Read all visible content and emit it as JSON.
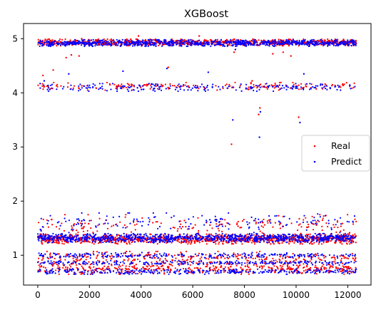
{
  "chart_data": {
    "type": "scatter",
    "title": "XGBoost",
    "xlabel": "",
    "ylabel": "",
    "xlim": [
      -550,
      12900
    ],
    "ylim": [
      0.45,
      5.28
    ],
    "xticks": [
      0,
      2000,
      4000,
      6000,
      8000,
      10000,
      12000
    ],
    "yticks": [
      1,
      2,
      3,
      4,
      5
    ],
    "grid": false,
    "legend_position": "center-right",
    "n_samples": 12330,
    "series": [
      {
        "name": "Real",
        "color": "#ff0000",
        "bands": [
          {
            "center": 4.93,
            "spread": 0.06,
            "fraction": 0.3
          },
          {
            "center": 4.12,
            "spread": 0.07,
            "fraction": 0.06
          },
          {
            "center": 1.3,
            "spread": 0.09,
            "fraction": 0.34
          },
          {
            "center": 1.55,
            "spread": 0.2,
            "fraction": 0.06
          },
          {
            "center": 0.95,
            "spread": 0.12,
            "fraction": 0.1
          },
          {
            "center": 0.75,
            "spread": 0.1,
            "fraction": 0.14
          }
        ],
        "outliers": [
          {
            "x": 200,
            "y": 4.32
          },
          {
            "x": 600,
            "y": 4.42
          },
          {
            "x": 1100,
            "y": 4.65
          },
          {
            "x": 1300,
            "y": 4.7
          },
          {
            "x": 1600,
            "y": 4.68
          },
          {
            "x": 1700,
            "y": 5.0
          },
          {
            "x": 3900,
            "y": 5.05
          },
          {
            "x": 5050,
            "y": 4.47
          },
          {
            "x": 6250,
            "y": 5.05
          },
          {
            "x": 7500,
            "y": 3.05
          },
          {
            "x": 7600,
            "y": 4.75
          },
          {
            "x": 8300,
            "y": 4.22
          },
          {
            "x": 8550,
            "y": 3.6
          },
          {
            "x": 8600,
            "y": 3.72
          },
          {
            "x": 9100,
            "y": 4.72
          },
          {
            "x": 9500,
            "y": 4.75
          },
          {
            "x": 9800,
            "y": 4.68
          },
          {
            "x": 10100,
            "y": 3.55
          },
          {
            "x": 11850,
            "y": 4.95
          }
        ]
      },
      {
        "name": "Predict",
        "color": "#0000ff",
        "bands": [
          {
            "center": 4.92,
            "spread": 0.06,
            "fraction": 0.3
          },
          {
            "center": 4.1,
            "spread": 0.07,
            "fraction": 0.07
          },
          {
            "center": 1.32,
            "spread": 0.08,
            "fraction": 0.32
          },
          {
            "center": 1.6,
            "spread": 0.18,
            "fraction": 0.05
          },
          {
            "center": 1.0,
            "spread": 0.05,
            "fraction": 0.08
          },
          {
            "center": 0.86,
            "spread": 0.04,
            "fraction": 0.08
          },
          {
            "center": 0.7,
            "spread": 0.05,
            "fraction": 0.1
          }
        ],
        "outliers": [
          {
            "x": 250,
            "y": 4.22
          },
          {
            "x": 1200,
            "y": 4.35
          },
          {
            "x": 3300,
            "y": 4.4
          },
          {
            "x": 5000,
            "y": 4.45
          },
          {
            "x": 6600,
            "y": 4.38
          },
          {
            "x": 7550,
            "y": 3.5
          },
          {
            "x": 7650,
            "y": 4.8
          },
          {
            "x": 8580,
            "y": 3.18
          },
          {
            "x": 8620,
            "y": 3.65
          },
          {
            "x": 10150,
            "y": 3.45
          },
          {
            "x": 10300,
            "y": 4.35
          }
        ]
      }
    ]
  }
}
